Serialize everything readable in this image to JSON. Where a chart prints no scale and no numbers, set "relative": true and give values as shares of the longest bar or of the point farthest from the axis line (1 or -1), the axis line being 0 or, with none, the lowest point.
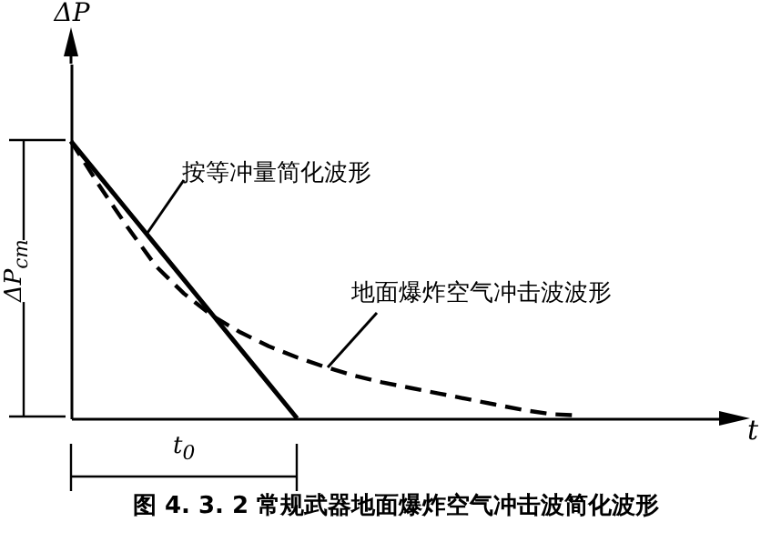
{
  "chart_data": {
    "type": "line",
    "relative": true,
    "title": "图 4. 3. 2 常规武器地面爆炸空气冲击波简化波形",
    "xlabel": "t",
    "ylabel": "ΔP",
    "categories": [
      null,
      null,
      null,
      null,
      null,
      null,
      null,
      null,
      null,
      null,
      null,
      null,
      null,
      null,
      null,
      null,
      null,
      null,
      null,
      null,
      null,
      null,
      null,
      null
    ],
    "series": [
      {
        "name": "按等冲量简化波形",
        "color": "#000000",
        "line_style": "solid",
        "values": [
          1,
          0.875,
          0.75,
          0.625,
          0.5,
          0.375,
          0.25,
          0.125,
          0,
          null,
          null,
          null,
          null,
          null,
          null,
          null,
          null,
          null,
          null,
          null,
          null,
          null,
          null,
          null
        ]
      },
      {
        "name": "地面爆炸空气冲击波波形",
        "color": "#000000",
        "line_style": "dashed",
        "values": [
          1,
          0.84,
          0.69,
          0.55,
          0.45,
          0.37,
          0.31,
          0.26,
          0.22,
          0.185,
          0.155,
          0.13,
          0.11,
          0.09,
          0.07,
          0.05,
          0.03,
          0.015,
          0.01,
          null,
          null,
          null,
          null,
          null
        ]
      }
    ],
    "annotations": [
      "ΔP$_{cm}$",
      "t$_{0}$"
    ]
  }
}
